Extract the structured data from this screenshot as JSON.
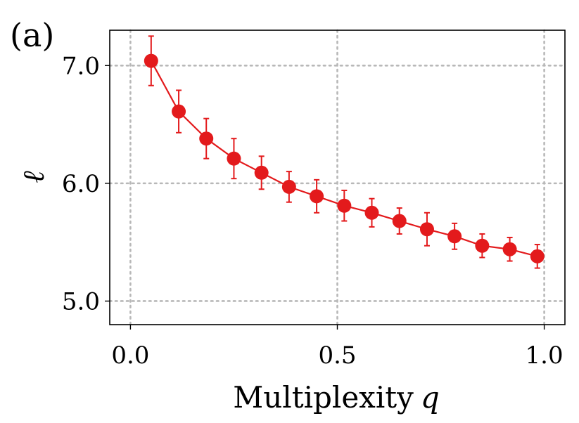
{
  "panel_label": "(a)",
  "chart_data": {
    "type": "line",
    "title": "",
    "xlabel": "Multiplexity q",
    "xlabel_text": "Multiplexity",
    "xlabel_var": "q",
    "ylabel": "ℓ",
    "xlim": [
      -0.05,
      1.05
    ],
    "ylim": [
      4.8,
      7.3
    ],
    "xticks": [
      0.0,
      0.5,
      1.0
    ],
    "xtick_labels": [
      "0.0",
      "0.5",
      "1.0"
    ],
    "yticks": [
      5.0,
      6.0,
      7.0
    ],
    "ytick_labels": [
      "5.0",
      "6.0",
      "7.0"
    ],
    "grid": true,
    "grid_style": "dotted",
    "series": [
      {
        "name": "ℓ",
        "color": "#e31a1c",
        "x": [
          0.05,
          0.1167,
          0.1833,
          0.25,
          0.3167,
          0.3833,
          0.45,
          0.5167,
          0.5833,
          0.65,
          0.7167,
          0.7833,
          0.85,
          0.9167,
          0.9833
        ],
        "y": [
          7.04,
          6.61,
          6.38,
          6.21,
          6.09,
          5.97,
          5.89,
          5.81,
          5.75,
          5.68,
          5.61,
          5.55,
          5.47,
          5.44,
          5.38
        ],
        "err": [
          0.21,
          0.18,
          0.17,
          0.17,
          0.14,
          0.13,
          0.14,
          0.13,
          0.12,
          0.11,
          0.14,
          0.11,
          0.1,
          0.1,
          0.1
        ]
      }
    ]
  }
}
